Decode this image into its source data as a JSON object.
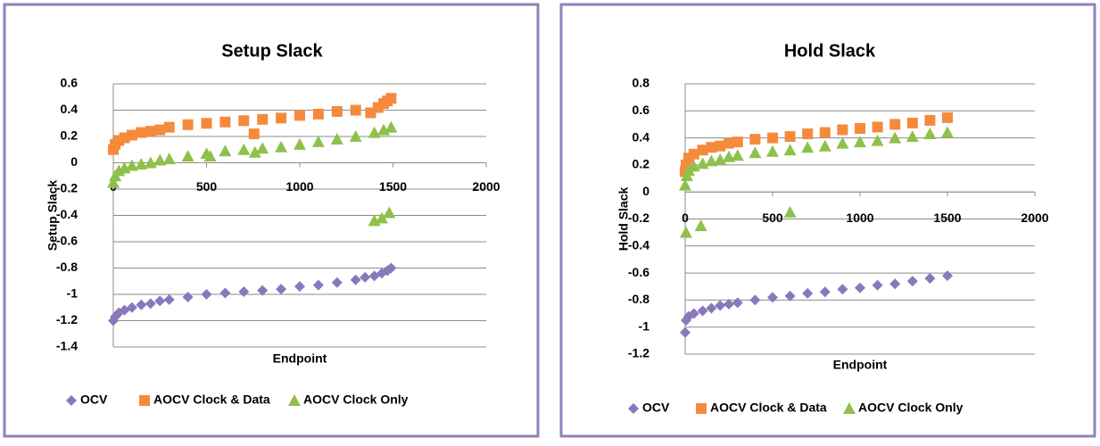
{
  "chart_data": [
    {
      "type": "scatter",
      "title": "Setup Slack",
      "x_label": "Endpoint",
      "y_label": "Setup  Slack",
      "xlim": [
        0,
        2000
      ],
      "xticks": [
        0,
        500,
        1000,
        1500,
        2000
      ],
      "ylim": [
        -1.4,
        0.6
      ],
      "yticks": [
        -1.4,
        -1.2,
        -1,
        -0.8,
        -0.6,
        -0.4,
        -0.2,
        0,
        0.2,
        0.4,
        0.6
      ],
      "grid": true,
      "legend": "bottom",
      "series": [
        {
          "name": "OCV",
          "color": "#8a78bd",
          "marker": "diamond",
          "x": [
            0,
            10,
            30,
            60,
            100,
            150,
            200,
            250,
            300,
            400,
            500,
            600,
            700,
            800,
            900,
            1000,
            1100,
            1200,
            1300,
            1350,
            1400,
            1440,
            1470,
            1490
          ],
          "values": [
            -1.2,
            -1.17,
            -1.14,
            -1.12,
            -1.1,
            -1.08,
            -1.07,
            -1.05,
            -1.04,
            -1.02,
            -1.0,
            -0.99,
            -0.98,
            -0.97,
            -0.96,
            -0.94,
            -0.93,
            -0.91,
            -0.89,
            -0.87,
            -0.86,
            -0.84,
            -0.82,
            -0.8
          ]
        },
        {
          "name": "AOCV Clock & Data",
          "color": "#f68a3c",
          "marker": "square",
          "x": [
            0,
            10,
            30,
            60,
            100,
            150,
            200,
            250,
            300,
            400,
            500,
            600,
            700,
            755,
            800,
            900,
            1000,
            1100,
            1200,
            1300,
            1380,
            1420,
            1450,
            1470,
            1490
          ],
          "values": [
            0.1,
            0.14,
            0.17,
            0.19,
            0.21,
            0.23,
            0.24,
            0.25,
            0.27,
            0.29,
            0.3,
            0.31,
            0.32,
            0.22,
            0.33,
            0.34,
            0.36,
            0.37,
            0.39,
            0.4,
            0.38,
            0.42,
            0.45,
            0.47,
            0.49
          ]
        },
        {
          "name": "AOCV Clock Only",
          "color": "#8fc14a",
          "marker": "triangle",
          "x": [
            0,
            10,
            30,
            60,
            100,
            150,
            200,
            250,
            300,
            400,
            500,
            520,
            600,
            700,
            760,
            800,
            900,
            1000,
            1100,
            1200,
            1300,
            1400,
            1450,
            1490,
            1400,
            1440,
            1480
          ],
          "values": [
            -0.15,
            -0.1,
            -0.06,
            -0.04,
            -0.02,
            -0.01,
            0.0,
            0.02,
            0.03,
            0.05,
            0.07,
            0.05,
            0.09,
            0.1,
            0.08,
            0.11,
            0.12,
            0.14,
            0.16,
            0.18,
            0.2,
            0.23,
            0.25,
            0.27,
            -0.44,
            -0.42,
            -0.38
          ]
        }
      ]
    },
    {
      "type": "scatter",
      "title": "Hold Slack",
      "x_label": "Endpoint",
      "y_label": "Hold Slack",
      "xlim": [
        0,
        2000
      ],
      "xticks": [
        0,
        500,
        1000,
        1500,
        2000
      ],
      "ylim": [
        -1.2,
        0.8
      ],
      "yticks": [
        -1.2,
        -1,
        -0.8,
        -0.6,
        -0.4,
        -0.2,
        0,
        0.2,
        0.4,
        0.6,
        0.8
      ],
      "grid": true,
      "legend": "bottom",
      "series": [
        {
          "name": "OCV",
          "color": "#8a78bd",
          "marker": "diamond",
          "x": [
            0,
            5,
            20,
            50,
            100,
            150,
            200,
            250,
            300,
            400,
            500,
            600,
            700,
            800,
            900,
            1000,
            1100,
            1200,
            1300,
            1400,
            1500
          ],
          "values": [
            -1.04,
            -0.95,
            -0.92,
            -0.9,
            -0.88,
            -0.86,
            -0.84,
            -0.83,
            -0.82,
            -0.8,
            -0.78,
            -0.77,
            -0.75,
            -0.74,
            -0.72,
            -0.71,
            -0.69,
            -0.68,
            -0.66,
            -0.64,
            -0.62
          ]
        },
        {
          "name": "AOCV Clock & Data",
          "color": "#f68a3c",
          "marker": "square",
          "x": [
            0,
            5,
            20,
            50,
            100,
            150,
            200,
            250,
            300,
            400,
            500,
            600,
            700,
            800,
            900,
            1000,
            1100,
            1200,
            1300,
            1400,
            1500
          ],
          "values": [
            0.15,
            0.2,
            0.25,
            0.28,
            0.31,
            0.33,
            0.34,
            0.36,
            0.37,
            0.39,
            0.4,
            0.41,
            0.43,
            0.44,
            0.46,
            0.47,
            0.48,
            0.5,
            0.51,
            0.53,
            0.55
          ]
        },
        {
          "name": "AOCV Clock Only",
          "color": "#8fc14a",
          "marker": "triangle",
          "x": [
            0,
            5,
            90,
            600,
            10,
            20,
            50,
            100,
            150,
            200,
            250,
            300,
            400,
            500,
            600,
            700,
            800,
            900,
            1000,
            1100,
            1200,
            1300,
            1400,
            1500
          ],
          "values": [
            0.05,
            -0.3,
            -0.25,
            -0.15,
            0.12,
            0.16,
            0.19,
            0.21,
            0.23,
            0.24,
            0.26,
            0.27,
            0.29,
            0.3,
            0.31,
            0.33,
            0.34,
            0.36,
            0.37,
            0.38,
            0.4,
            0.41,
            0.43,
            0.44
          ]
        }
      ]
    }
  ]
}
